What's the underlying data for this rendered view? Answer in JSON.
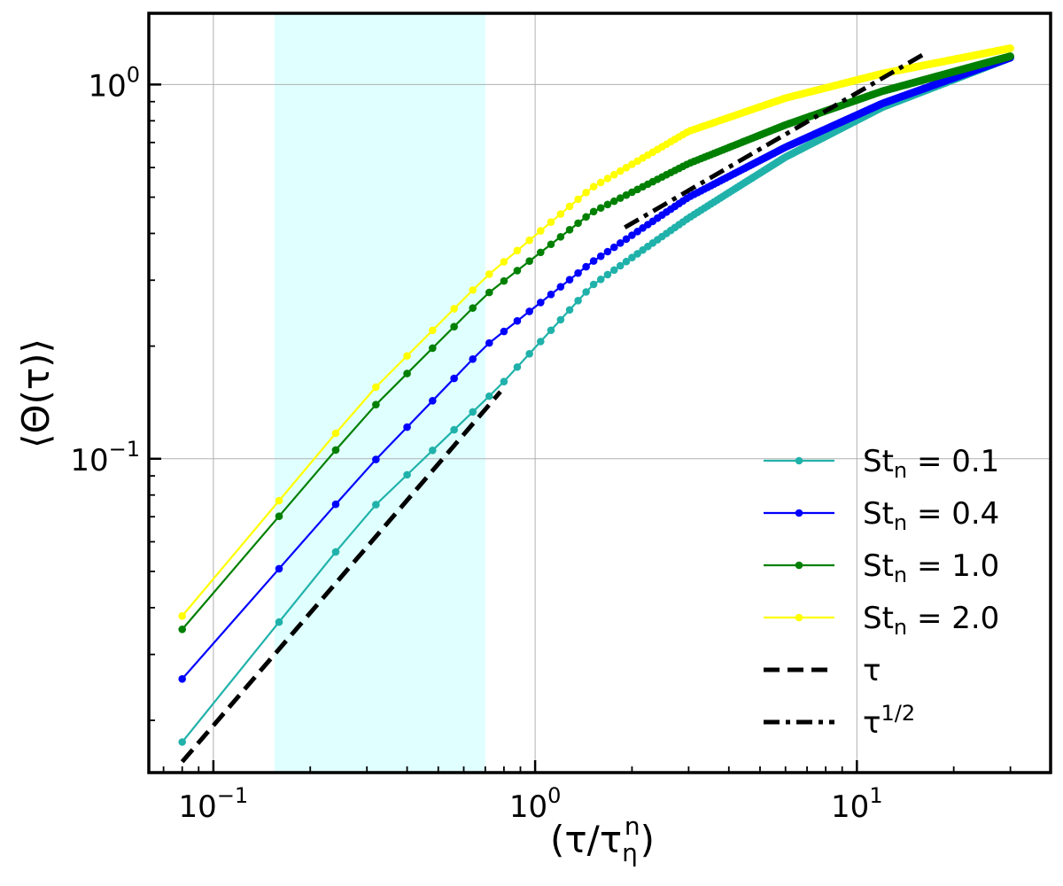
{
  "chart_data": {
    "type": "line",
    "scale": {
      "x": "log",
      "y": "log"
    },
    "xlim": [
      0.063,
      40
    ],
    "ylim": [
      0.0145,
      1.55
    ],
    "xlabel": "(τ/τ",
    "xlabel_sup": "n",
    "xlabel_sub": "η",
    "xlabel_close": ")",
    "ylabel": "⟨Θ(τ)⟩",
    "grid": true,
    "highlight_band": {
      "x": [
        0.155,
        0.7
      ],
      "color": "#e0ffff"
    },
    "x_ticks": [
      {
        "value": 0.1,
        "base": "10",
        "exp": "−1"
      },
      {
        "value": 1,
        "base": "10",
        "exp": "0"
      },
      {
        "value": 10,
        "base": "10",
        "exp": "1"
      }
    ],
    "y_ticks": [
      {
        "value": 0.1,
        "base": "10",
        "exp": "−1"
      },
      {
        "value": 1,
        "base": "10",
        "exp": "0"
      }
    ],
    "legend_position": "lower-right",
    "series": [
      {
        "name": "St_n = 0.1",
        "label_main": "St",
        "label_sub": "n",
        "label_value": " = 0.1",
        "color": "#20b2aa",
        "marker": true,
        "points": [
          [
            0.08,
            0.0175
          ],
          [
            0.3,
            0.0715
          ],
          [
            0.78,
            0.157
          ],
          [
            1.5,
            0.29
          ],
          [
            3.0,
            0.44
          ],
          [
            6.0,
            0.64
          ],
          [
            12.0,
            0.87
          ],
          [
            30.0,
            1.18
          ]
        ]
      },
      {
        "name": "St_n = 0.4",
        "label_main": "St",
        "label_sub": "n",
        "label_value": " = 0.4",
        "color": "#0000ff",
        "marker": true,
        "points": [
          [
            0.08,
            0.0258
          ],
          [
            0.3,
            0.094
          ],
          [
            0.7,
            0.2
          ],
          [
            1.5,
            0.335
          ],
          [
            3.0,
            0.5
          ],
          [
            6.0,
            0.68
          ],
          [
            12.0,
            0.89
          ],
          [
            30.0,
            1.18
          ]
        ]
      },
      {
        "name": "St_n = 1.0",
        "label_main": "St",
        "label_sub": "n",
        "label_value": " = 1.0",
        "color": "#008000",
        "marker": true,
        "points": [
          [
            0.08,
            0.035
          ],
          [
            0.3,
            0.132
          ],
          [
            0.7,
            0.273
          ],
          [
            1.5,
            0.455
          ],
          [
            3.0,
            0.615
          ],
          [
            6.0,
            0.78
          ],
          [
            12.0,
            0.96
          ],
          [
            30.0,
            1.19
          ]
        ]
      },
      {
        "name": "St_n = 2.0",
        "label_main": "St",
        "label_sub": "n",
        "label_value": " = 2.0",
        "color": "#ffff00",
        "marker": true,
        "points": [
          [
            0.08,
            0.038
          ],
          [
            0.3,
            0.147
          ],
          [
            0.7,
            0.305
          ],
          [
            1.5,
            0.53
          ],
          [
            3.0,
            0.75
          ],
          [
            6.0,
            0.92
          ],
          [
            12.0,
            1.07
          ],
          [
            30.0,
            1.25
          ]
        ]
      },
      {
        "name": "τ",
        "label_main": "τ",
        "label_sub": "",
        "label_value": "",
        "color": "#000000",
        "marker": false,
        "dash": "dashed",
        "points": [
          [
            0.08,
            0.0155
          ],
          [
            0.78,
            0.151
          ]
        ]
      },
      {
        "name": "τ^1/2",
        "label_main": "τ",
        "label_sub": "",
        "label_value": "",
        "label_sup": "1/2",
        "color": "#000000",
        "marker": false,
        "dash": "dashdot",
        "points": [
          [
            1.9,
            0.415
          ],
          [
            16.0,
            1.2
          ]
        ]
      }
    ]
  }
}
